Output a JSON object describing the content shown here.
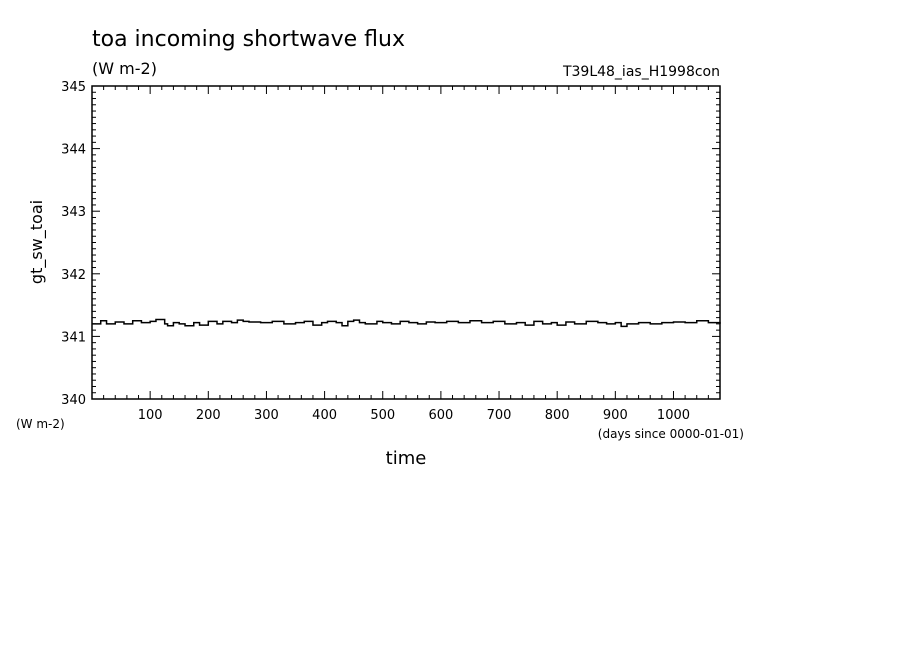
{
  "chart_data": {
    "type": "line",
    "title": "toa incoming shortwave flux",
    "units_top": "(W m-2)",
    "run_name": "T39L48_ias_H1998con",
    "ylabel": "gt_sw_toai",
    "yunits": "(W m-2)",
    "xlabel": "time",
    "xunits": "(days since 0000-01-01)",
    "xlim": [
      0,
      1080
    ],
    "ylim": [
      340,
      345
    ],
    "x_ticks": [
      100,
      200,
      300,
      400,
      500,
      600,
      700,
      800,
      900,
      1000
    ],
    "y_ticks": [
      340,
      341,
      342,
      343,
      344,
      345
    ],
    "series": [
      {
        "x": [
          0,
          15,
          25,
          40,
          55,
          70,
          85,
          100,
          110,
          125,
          130,
          140,
          150,
          160,
          175,
          185,
          200,
          215,
          225,
          240,
          250,
          260,
          270,
          290,
          310,
          330,
          350,
          365,
          380,
          395,
          405,
          420,
          430,
          440,
          450,
          460,
          470,
          490,
          500,
          515,
          530,
          545,
          560,
          575,
          590,
          610,
          630,
          650,
          670,
          690,
          710,
          730,
          745,
          760,
          775,
          790,
          800,
          815,
          830,
          850,
          870,
          885,
          900,
          910,
          920,
          940,
          960,
          980,
          1000,
          1020,
          1040,
          1060,
          1080
        ],
        "y": [
          341.2,
          341.25,
          341.2,
          341.23,
          341.2,
          341.25,
          341.22,
          341.24,
          341.27,
          341.2,
          341.17,
          341.22,
          341.2,
          341.17,
          341.22,
          341.18,
          341.24,
          341.2,
          341.24,
          341.22,
          341.26,
          341.24,
          341.23,
          341.22,
          341.24,
          341.2,
          341.22,
          341.24,
          341.18,
          341.22,
          341.24,
          341.22,
          341.17,
          341.24,
          341.26,
          341.22,
          341.2,
          341.24,
          341.22,
          341.2,
          341.24,
          341.22,
          341.2,
          341.23,
          341.22,
          341.24,
          341.22,
          341.25,
          341.22,
          341.24,
          341.2,
          341.22,
          341.18,
          341.24,
          341.2,
          341.22,
          341.18,
          341.23,
          341.2,
          341.24,
          341.22,
          341.2,
          341.22,
          341.16,
          341.2,
          341.22,
          341.2,
          341.22,
          341.23,
          341.22,
          341.25,
          341.22,
          341.2
        ]
      }
    ]
  }
}
